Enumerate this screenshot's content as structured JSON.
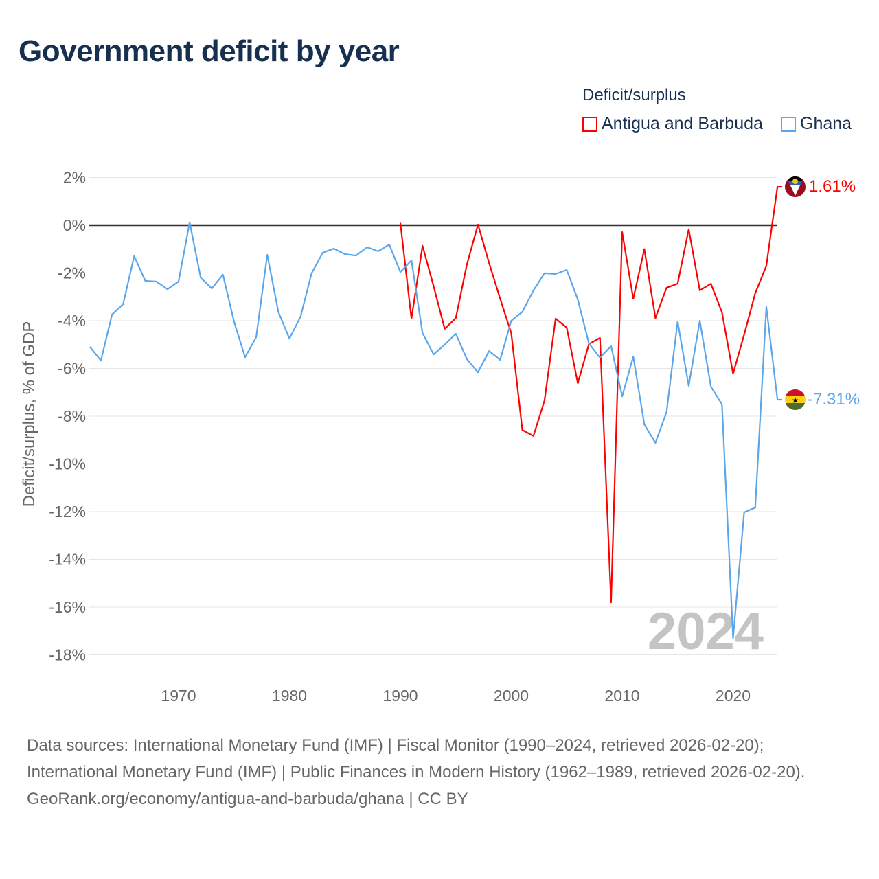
{
  "title": "Government deficit by year",
  "legend": {
    "title": "Deficit/surplus",
    "items": [
      {
        "label": "Antigua and Barbuda",
        "color": "#ff0000"
      },
      {
        "label": "Ghana",
        "color": "#5ba6ea"
      }
    ]
  },
  "footer": {
    "sources": "Data sources: International Monetary Fund (IMF) | Fiscal Monitor (1990–2024, retrieved 2026-02-20); International Monetary Fund (IMF) | Public Finances in Modern History (1962–1989, retrieved 2026-02-20).",
    "link": "GeoRank.org/economy/antigua-and-barbuda/ghana | CC BY"
  },
  "chart_data": {
    "type": "line",
    "title": "Government deficit by year",
    "xlabel": "",
    "ylabel": "Deficit/surplus, % of GDP",
    "xlim": [
      1962,
      2024
    ],
    "ylim": [
      -18,
      2
    ],
    "x_ticks": [
      1970,
      1980,
      1990,
      2000,
      2010,
      2020
    ],
    "y_ticks": [
      2,
      0,
      -2,
      -4,
      -6,
      -8,
      -10,
      -12,
      -14,
      -16,
      -18
    ],
    "y_tick_labels": [
      "2%",
      "0%",
      "-2%",
      "-4%",
      "-6%",
      "-8%",
      "-10%",
      "-12%",
      "-14%",
      "-16%",
      "-18%"
    ],
    "year_watermark": "2024",
    "legend_position": "top-right",
    "series": [
      {
        "name": "Antigua and Barbuda",
        "color": "#ff0000",
        "end_label": "1.61%",
        "x_start": 1990,
        "values": [
          0.1,
          -3.91,
          -0.86,
          -2.56,
          -4.34,
          -3.89,
          -1.64,
          0.03,
          -1.58,
          -3.08,
          -4.52,
          -8.58,
          -8.83,
          -7.34,
          -3.91,
          -4.29,
          -6.62,
          -4.98,
          -4.72,
          -15.8,
          -0.29,
          -3.08,
          -1.0,
          -3.89,
          -2.62,
          -2.45,
          -0.17,
          -2.73,
          -2.45,
          -3.65,
          -6.22,
          -4.58,
          -2.85,
          -1.7,
          1.61
        ]
      },
      {
        "name": "Ghana",
        "color": "#5ba6ea",
        "end_label": "-7.31%",
        "x_start": 1962,
        "values": [
          -5.09,
          -5.67,
          -3.74,
          -3.31,
          -1.29,
          -2.33,
          -2.36,
          -2.68,
          -2.36,
          0.12,
          -2.2,
          -2.65,
          -2.07,
          -4.03,
          -5.53,
          -4.69,
          -1.24,
          -3.63,
          -4.75,
          -3.83,
          -2.01,
          -1.15,
          -0.98,
          -1.21,
          -1.27,
          -0.92,
          -1.09,
          -0.81,
          -1.96,
          -1.47,
          -4.52,
          -5.41,
          -5.0,
          -4.55,
          -5.61,
          -6.16,
          -5.27,
          -5.64,
          -4.0,
          -3.63,
          -2.73,
          -2.01,
          -2.04,
          -1.87,
          -3.11,
          -4.95,
          -5.55,
          -5.06,
          -7.17,
          -5.5,
          -8.35,
          -9.12,
          -7.83,
          -4.03,
          -6.73,
          -4.0,
          -6.76,
          -7.51,
          -17.3,
          -12.03,
          -11.83,
          -3.42,
          -7.31
        ]
      }
    ]
  }
}
